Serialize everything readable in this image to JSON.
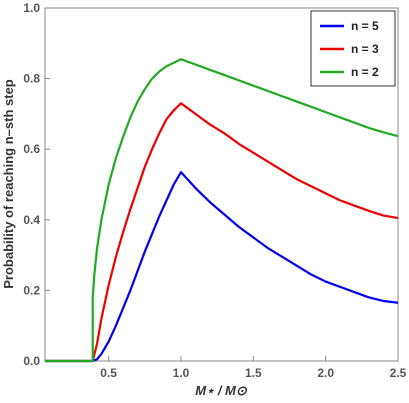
{
  "chart_data": {
    "type": "line",
    "xlabel": "M⋆ / M⊙",
    "ylabel": "Probability of reaching n–sth step",
    "xlim": [
      0.06,
      2.5
    ],
    "ylim": [
      0,
      1.0
    ],
    "x_ticks": [
      "0.5",
      "1.0",
      "1.5",
      "2.0",
      "2.5"
    ],
    "y_ticks": [
      "0.0",
      "0.2",
      "0.4",
      "0.6",
      "0.8",
      "1.0"
    ],
    "legend_position": "top-right",
    "series": [
      {
        "name": "n = 5",
        "color": "#0000ee",
        "x": [
          0.06,
          0.39,
          0.42,
          0.45,
          0.5,
          0.55,
          0.6,
          0.65,
          0.7,
          0.75,
          0.8,
          0.85,
          0.9,
          0.95,
          1.0,
          1.1,
          1.2,
          1.3,
          1.4,
          1.5,
          1.6,
          1.7,
          1.8,
          1.9,
          2.0,
          2.1,
          2.2,
          2.3,
          2.4,
          2.5
        ],
        "y": [
          0,
          0,
          0.005,
          0.02,
          0.055,
          0.1,
          0.15,
          0.2,
          0.255,
          0.31,
          0.36,
          0.41,
          0.455,
          0.5,
          0.535,
          0.49,
          0.45,
          0.415,
          0.38,
          0.35,
          0.32,
          0.295,
          0.27,
          0.245,
          0.225,
          0.21,
          0.195,
          0.18,
          0.17,
          0.165
        ]
      },
      {
        "name": "n = 3",
        "color": "#ee0000",
        "x": [
          0.06,
          0.39,
          0.42,
          0.45,
          0.5,
          0.55,
          0.6,
          0.65,
          0.7,
          0.75,
          0.8,
          0.85,
          0.9,
          0.95,
          1.0,
          1.1,
          1.2,
          1.3,
          1.4,
          1.5,
          1.6,
          1.7,
          1.8,
          1.9,
          2.0,
          2.1,
          2.2,
          2.3,
          2.4,
          2.5
        ],
        "y": [
          0,
          0,
          0.05,
          0.12,
          0.215,
          0.295,
          0.365,
          0.43,
          0.49,
          0.55,
          0.6,
          0.645,
          0.685,
          0.71,
          0.73,
          0.7,
          0.67,
          0.645,
          0.615,
          0.59,
          0.565,
          0.54,
          0.515,
          0.495,
          0.475,
          0.455,
          0.44,
          0.425,
          0.412,
          0.405
        ]
      },
      {
        "name": "n = 2",
        "color": "#22aa22",
        "x": [
          0.06,
          0.39,
          0.39,
          0.4,
          0.42,
          0.45,
          0.5,
          0.55,
          0.6,
          0.65,
          0.7,
          0.75,
          0.8,
          0.85,
          0.9,
          0.95,
          1.0,
          1.1,
          1.2,
          1.3,
          1.4,
          1.5,
          1.6,
          1.7,
          1.8,
          1.9,
          2.0,
          2.1,
          2.2,
          2.3,
          2.4,
          2.5
        ],
        "y": [
          0,
          0,
          0.18,
          0.24,
          0.32,
          0.4,
          0.5,
          0.575,
          0.635,
          0.69,
          0.735,
          0.77,
          0.8,
          0.82,
          0.835,
          0.845,
          0.855,
          0.84,
          0.825,
          0.81,
          0.795,
          0.78,
          0.765,
          0.75,
          0.735,
          0.72,
          0.705,
          0.69,
          0.675,
          0.66,
          0.648,
          0.637
        ]
      }
    ]
  }
}
